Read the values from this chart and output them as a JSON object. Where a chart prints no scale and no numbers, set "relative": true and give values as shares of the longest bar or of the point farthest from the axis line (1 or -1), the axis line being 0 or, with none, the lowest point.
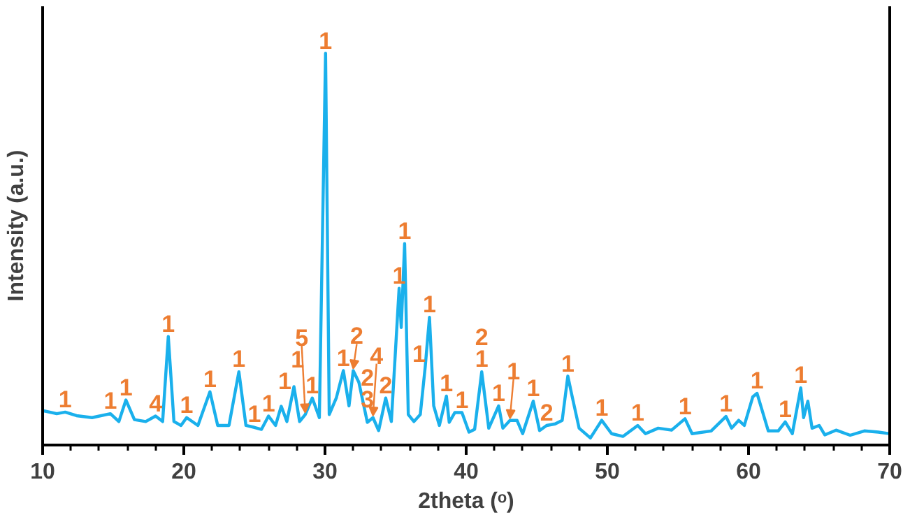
{
  "chart_data": {
    "type": "line",
    "relative": true,
    "xlabel": "2theta (ᵒ)",
    "ylabel": "Intensity (a.u.)",
    "xlim": [
      10,
      70
    ],
    "xticks": [
      10,
      20,
      30,
      40,
      50,
      60,
      70
    ],
    "grid": false,
    "marker": "none",
    "line_style": "solid",
    "tick_labels": "x",
    "series": [
      {
        "color": "#1ab0ec",
        "x": [
          10,
          11.0,
          11.6,
          12.4,
          13.5,
          14.8,
          15.4,
          15.9,
          16.5,
          17.3,
          18.0,
          18.5,
          18.9,
          19.3,
          19.8,
          20.2,
          21.0,
          21.85,
          22.4,
          23.2,
          23.9,
          24.4,
          25.0,
          25.5,
          26.0,
          26.5,
          26.9,
          27.3,
          27.8,
          28.2,
          28.6,
          29.1,
          29.6,
          30.04,
          30.3,
          30.8,
          31.3,
          31.7,
          32.0,
          32.4,
          33.0,
          33.4,
          33.8,
          34.3,
          34.7,
          35.25,
          35.4,
          35.64,
          35.9,
          36.3,
          36.75,
          37.1,
          37.4,
          37.7,
          38.1,
          38.6,
          38.8,
          39.2,
          39.7,
          40.2,
          40.6,
          41.1,
          41.6,
          42.3,
          42.6,
          43.1,
          43.6,
          44.0,
          44.75,
          45.2,
          45.7,
          46.3,
          46.8,
          47.2,
          47.5,
          48.0,
          48.8,
          49.6,
          50.3,
          51.1,
          52.15,
          52.7,
          53.6,
          54.55,
          55.5,
          56.0,
          57.35,
          58.4,
          58.8,
          59.3,
          59.7,
          60.3,
          60.6,
          61.0,
          61.4,
          62.1,
          62.6,
          63.1,
          63.7,
          63.9,
          64.2,
          64.5,
          65.0,
          65.4,
          66.2,
          67.2,
          68.2,
          69.2,
          70
        ],
        "values": [
          0.088,
          0.08,
          0.084,
          0.075,
          0.07,
          0.08,
          0.06,
          0.115,
          0.065,
          0.06,
          0.074,
          0.06,
          0.277,
          0.06,
          0.05,
          0.07,
          0.05,
          0.136,
          0.05,
          0.05,
          0.187,
          0.05,
          0.045,
          0.04,
          0.074,
          0.05,
          0.099,
          0.06,
          0.149,
          0.06,
          0.078,
          0.12,
          0.07,
          1.0,
          0.078,
          0.12,
          0.19,
          0.1,
          0.19,
          0.16,
          0.058,
          0.07,
          0.037,
          0.12,
          0.06,
          0.4,
          0.3,
          0.514,
          0.078,
          0.06,
          0.078,
          0.2,
          0.326,
          0.1,
          0.05,
          0.125,
          0.058,
          0.083,
          0.083,
          0.033,
          0.04,
          0.187,
          0.043,
          0.1,
          0.043,
          0.063,
          0.063,
          0.029,
          0.112,
          0.037,
          0.05,
          0.054,
          0.063,
          0.176,
          0.125,
          0.043,
          0.018,
          0.063,
          0.029,
          0.022,
          0.05,
          0.029,
          0.043,
          0.038,
          0.067,
          0.029,
          0.036,
          0.073,
          0.043,
          0.063,
          0.05,
          0.123,
          0.132,
          0.084,
          0.036,
          0.036,
          0.059,
          0.029,
          0.146,
          0.07,
          0.112,
          0.043,
          0.05,
          0.026,
          0.038,
          0.025,
          0.036,
          0.033,
          0.029
        ]
      }
    ],
    "annotations": [
      {
        "text": "1",
        "x": 11.6,
        "y": 0.084
      },
      {
        "text": "1",
        "x": 14.8,
        "y": 0.08
      },
      {
        "text": "1",
        "x": 15.9,
        "y": 0.115
      },
      {
        "text": "4",
        "x": 18.0,
        "y": 0.074
      },
      {
        "text": "1",
        "x": 18.9,
        "y": 0.277
      },
      {
        "text": "1",
        "x": 20.2,
        "y": 0.07
      },
      {
        "text": "1",
        "x": 21.85,
        "y": 0.136
      },
      {
        "text": "1",
        "x": 23.9,
        "y": 0.187
      },
      {
        "text": "1",
        "x": 25.0,
        "y": 0.045
      },
      {
        "text": "1",
        "x": 26.0,
        "y": 0.074
      },
      {
        "text": "1",
        "x": 26.9,
        "y": 0.099
      },
      {
        "text": "1",
        "x": 27.8,
        "y": 0.149
      },
      {
        "text": "1",
        "x": 29.1,
        "y": 0.12
      },
      {
        "text": "5",
        "x": 28.6,
        "y": 0.078
      },
      {
        "text": "1",
        "x": 30.04,
        "y": 1.0
      },
      {
        "text": "1",
        "x": 31.3,
        "y": 0.19
      },
      {
        "text": "2",
        "x": 32.0,
        "y": 0.19
      },
      {
        "text": "3",
        "x": 33.0,
        "y": 0.058
      },
      {
        "text": "2",
        "x": 33.0,
        "y": 0.058
      },
      {
        "text": "2",
        "x": 34.3,
        "y": 0.12
      },
      {
        "text": "4",
        "x": 33.4,
        "y": 0.07
      },
      {
        "text": "1",
        "x": 35.64,
        "y": 0.514
      },
      {
        "text": "1",
        "x": 35.25,
        "y": 0.4
      },
      {
        "text": "1",
        "x": 37.4,
        "y": 0.326
      },
      {
        "text": "1",
        "x": 37.1,
        "y": 0.2
      },
      {
        "text": "1",
        "x": 38.6,
        "y": 0.125
      },
      {
        "text": "1",
        "x": 39.7,
        "y": 0.083
      },
      {
        "text": "1",
        "x": 41.1,
        "y": 0.187
      },
      {
        "text": "2",
        "x": 41.1,
        "y": 0.187
      },
      {
        "text": "1",
        "x": 42.3,
        "y": 0.1
      },
      {
        "text": "1",
        "x": 43.1,
        "y": 0.063
      },
      {
        "text": "1",
        "x": 44.75,
        "y": 0.112
      },
      {
        "text": "2",
        "x": 45.7,
        "y": 0.05
      },
      {
        "text": "1",
        "x": 47.2,
        "y": 0.176
      },
      {
        "text": "1",
        "x": 49.6,
        "y": 0.063
      },
      {
        "text": "1",
        "x": 52.15,
        "y": 0.05
      },
      {
        "text": "1",
        "x": 55.5,
        "y": 0.067
      },
      {
        "text": "1",
        "x": 58.4,
        "y": 0.073
      },
      {
        "text": "1",
        "x": 60.6,
        "y": 0.132
      },
      {
        "text": "1",
        "x": 62.6,
        "y": 0.059
      },
      {
        "text": "1",
        "x": 63.7,
        "y": 0.146
      }
    ]
  }
}
